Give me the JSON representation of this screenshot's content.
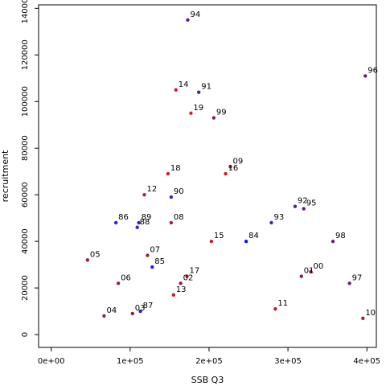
{
  "chart_data": {
    "type": "scatter",
    "title": "",
    "xlabel": "SSB Q3",
    "ylabel": "recruitment",
    "xlim": [
      -16000,
      412000
    ],
    "ylim": [
      -5500,
      141500
    ],
    "x_ticks": [
      {
        "value": 0,
        "label": "0e+00"
      },
      {
        "value": 100000,
        "label": "1e+05"
      },
      {
        "value": 200000,
        "label": "2e+05"
      },
      {
        "value": 300000,
        "label": "3e+05"
      },
      {
        "value": 400000,
        "label": "4e+05"
      }
    ],
    "y_ticks": [
      {
        "value": 0,
        "label": "0"
      },
      {
        "value": 20000,
        "label": "20000"
      },
      {
        "value": 40000,
        "label": "40000"
      },
      {
        "value": 60000,
        "label": "60000"
      },
      {
        "value": 80000,
        "label": "80000"
      },
      {
        "value": 100000,
        "label": "100000"
      },
      {
        "value": 120000,
        "label": "120000"
      },
      {
        "value": 140000,
        "label": "140000"
      }
    ],
    "grid": false,
    "legend": "none",
    "colors": {
      "early": "#0000ff",
      "mid": "#800080",
      "late": "#dd0033",
      "axis": "#000000",
      "label": "#000000"
    },
    "points": [
      {
        "label": "84",
        "x": 247000,
        "y": 40000,
        "color": "#1010ee"
      },
      {
        "label": "85",
        "x": 128000,
        "y": 29000,
        "color": "#2020dd"
      },
      {
        "label": "86",
        "x": 82000,
        "y": 48000,
        "color": "#2a20dd"
      },
      {
        "label": "87",
        "x": 113000,
        "y": 10000,
        "color": "#3020cc"
      },
      {
        "label": "88",
        "x": 109000,
        "y": 46000,
        "color": "#3a20cc"
      },
      {
        "label": "89",
        "x": 111000,
        "y": 48000,
        "color": "#4020bb"
      },
      {
        "label": "90",
        "x": 152000,
        "y": 59000,
        "color": "#4520bb"
      },
      {
        "label": "91",
        "x": 187000,
        "y": 104000,
        "color": "#4a20aa"
      },
      {
        "label": "92",
        "x": 309000,
        "y": 55000,
        "color": "#5020aa"
      },
      {
        "label": "93",
        "x": 279000,
        "y": 48000,
        "color": "#55209a"
      },
      {
        "label": "94",
        "x": 173000,
        "y": 135000,
        "color": "#5a209a"
      },
      {
        "label": "95",
        "x": 320000,
        "y": 54000,
        "color": "#60208a"
      },
      {
        "label": "96",
        "x": 398000,
        "y": 111000,
        "color": "#65208a"
      },
      {
        "label": "97",
        "x": 378000,
        "y": 22000,
        "color": "#6a207a"
      },
      {
        "label": "98",
        "x": 357000,
        "y": 40000,
        "color": "#70207a"
      },
      {
        "label": "99",
        "x": 206000,
        "y": 93000,
        "color": "#75206a"
      },
      {
        "label": "00",
        "x": 329000,
        "y": 27000,
        "color": "#7a206a"
      },
      {
        "label": "01",
        "x": 317000,
        "y": 25000,
        "color": "#80205a"
      },
      {
        "label": "02",
        "x": 164000,
        "y": 22000,
        "color": "#85205a"
      },
      {
        "label": "03",
        "x": 103000,
        "y": 9000,
        "color": "#8a204a"
      },
      {
        "label": "04",
        "x": 67000,
        "y": 8000,
        "color": "#90204a"
      },
      {
        "label": "05",
        "x": 46000,
        "y": 32000,
        "color": "#95203f"
      },
      {
        "label": "06",
        "x": 85000,
        "y": 22000,
        "color": "#9a203f"
      },
      {
        "label": "07",
        "x": 122000,
        "y": 34000,
        "color": "#a02038"
      },
      {
        "label": "08",
        "x": 152000,
        "y": 48000,
        "color": "#a52038"
      },
      {
        "label": "09",
        "x": 227000,
        "y": 72000,
        "color": "#aa2035"
      },
      {
        "label": "10",
        "x": 395000,
        "y": 7000,
        "color": "#b02035"
      },
      {
        "label": "11",
        "x": 284000,
        "y": 11000,
        "color": "#b51f33"
      },
      {
        "label": "12",
        "x": 118000,
        "y": 60000,
        "color": "#ba1f33"
      },
      {
        "label": "13",
        "x": 155000,
        "y": 17000,
        "color": "#c01e33"
      },
      {
        "label": "14",
        "x": 158000,
        "y": 105000,
        "color": "#c51d33"
      },
      {
        "label": "15",
        "x": 203000,
        "y": 40000,
        "color": "#ca1c33"
      },
      {
        "label": "16",
        "x": 221000,
        "y": 69000,
        "color": "#d01b33"
      },
      {
        "label": "17",
        "x": 172000,
        "y": 25000,
        "color": "#d51a33"
      },
      {
        "label": "18",
        "x": 148000,
        "y": 69000,
        "color": "#da1a33"
      },
      {
        "label": "19",
        "x": 177000,
        "y": 95000,
        "color": "#e01933"
      }
    ]
  }
}
